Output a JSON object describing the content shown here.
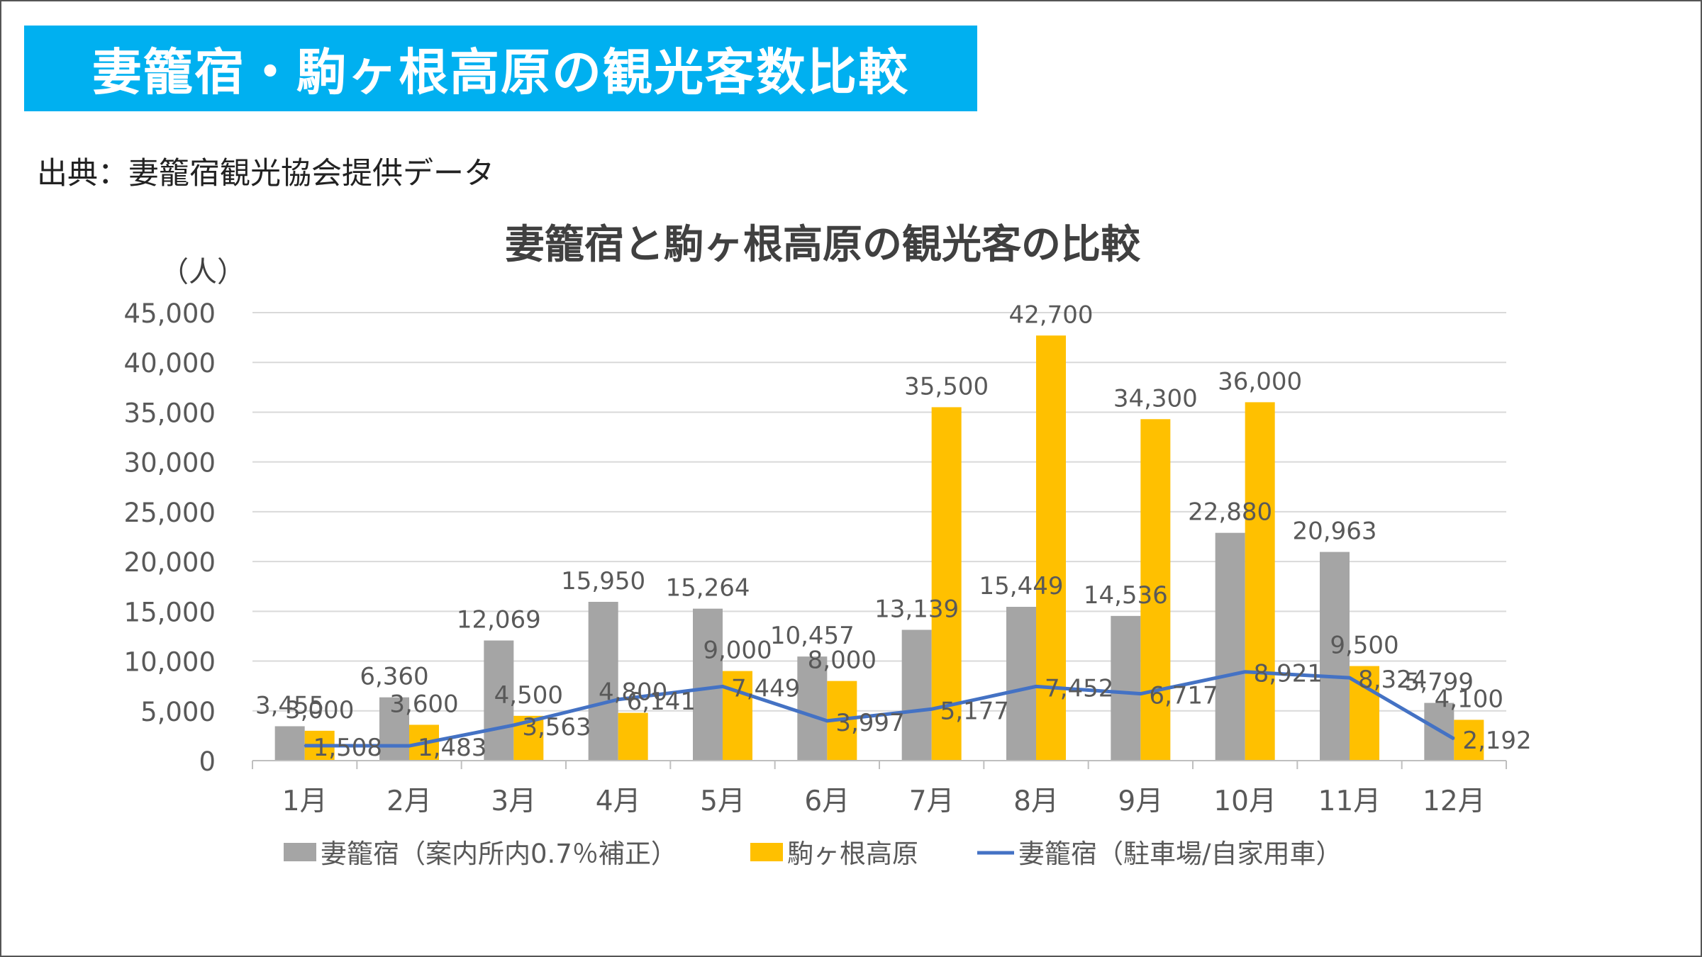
{
  "page": {
    "title": "妻籠宿・駒ヶ根高原の観光客数比較",
    "source": "出典：妻籠宿観光協会提供データ",
    "accent_color": "#00b0f0"
  },
  "chart_data": {
    "type": "bar",
    "title": "妻籠宿と駒ヶ根高原の観光客の比較",
    "ylabel": "（人）",
    "xlabel": "",
    "categories": [
      "1月",
      "2月",
      "3月",
      "4月",
      "5月",
      "6月",
      "7月",
      "8月",
      "9月",
      "10月",
      "11月",
      "12月"
    ],
    "ylim": [
      0,
      45000
    ],
    "yticks": [
      0,
      5000,
      10000,
      15000,
      20000,
      25000,
      30000,
      35000,
      40000,
      45000
    ],
    "ytick_labels": [
      "0",
      "5,000",
      "10,000",
      "15,000",
      "20,000",
      "25,000",
      "30,000",
      "35,000",
      "40,000",
      "45,000"
    ],
    "grid": true,
    "legend_position": "bottom",
    "series": [
      {
        "name": "妻籠宿（案内所内0.7％補正）",
        "type": "bar",
        "color": "#a5a5a5",
        "values": [
          3455,
          6360,
          12069,
          15950,
          15264,
          10457,
          13139,
          15449,
          14536,
          22880,
          20963,
          5799
        ],
        "labels": [
          "3,455",
          "6,360",
          "12,069",
          "15,950",
          "15,264",
          "10,457",
          "13,139",
          "15,449",
          "14,536",
          "22,880",
          "20,963",
          "5,799"
        ]
      },
      {
        "name": "駒ヶ根高原",
        "type": "bar",
        "color": "#ffc000",
        "values": [
          3000,
          3600,
          4500,
          4800,
          9000,
          8000,
          35500,
          42700,
          34300,
          36000,
          9500,
          4100
        ],
        "labels": [
          "3,000",
          "3,600",
          "4,500",
          "4,800",
          "9,000",
          "8,000",
          "35,500",
          "42,700",
          "34,300",
          "36,000",
          "9,500",
          "4,100"
        ]
      },
      {
        "name": "妻籠宿（駐車場/自家用車）",
        "type": "line",
        "color": "#4472c4",
        "values": [
          1508,
          1483,
          3563,
          6141,
          7449,
          3997,
          5177,
          7452,
          6717,
          8921,
          8324,
          2192
        ],
        "labels": [
          "1,508",
          "1,483",
          "3,563",
          "6,141",
          "7,449",
          "3,997",
          "5,177",
          "7,452",
          "6,717",
          "8,921",
          "8,324",
          "2,192"
        ]
      }
    ]
  }
}
